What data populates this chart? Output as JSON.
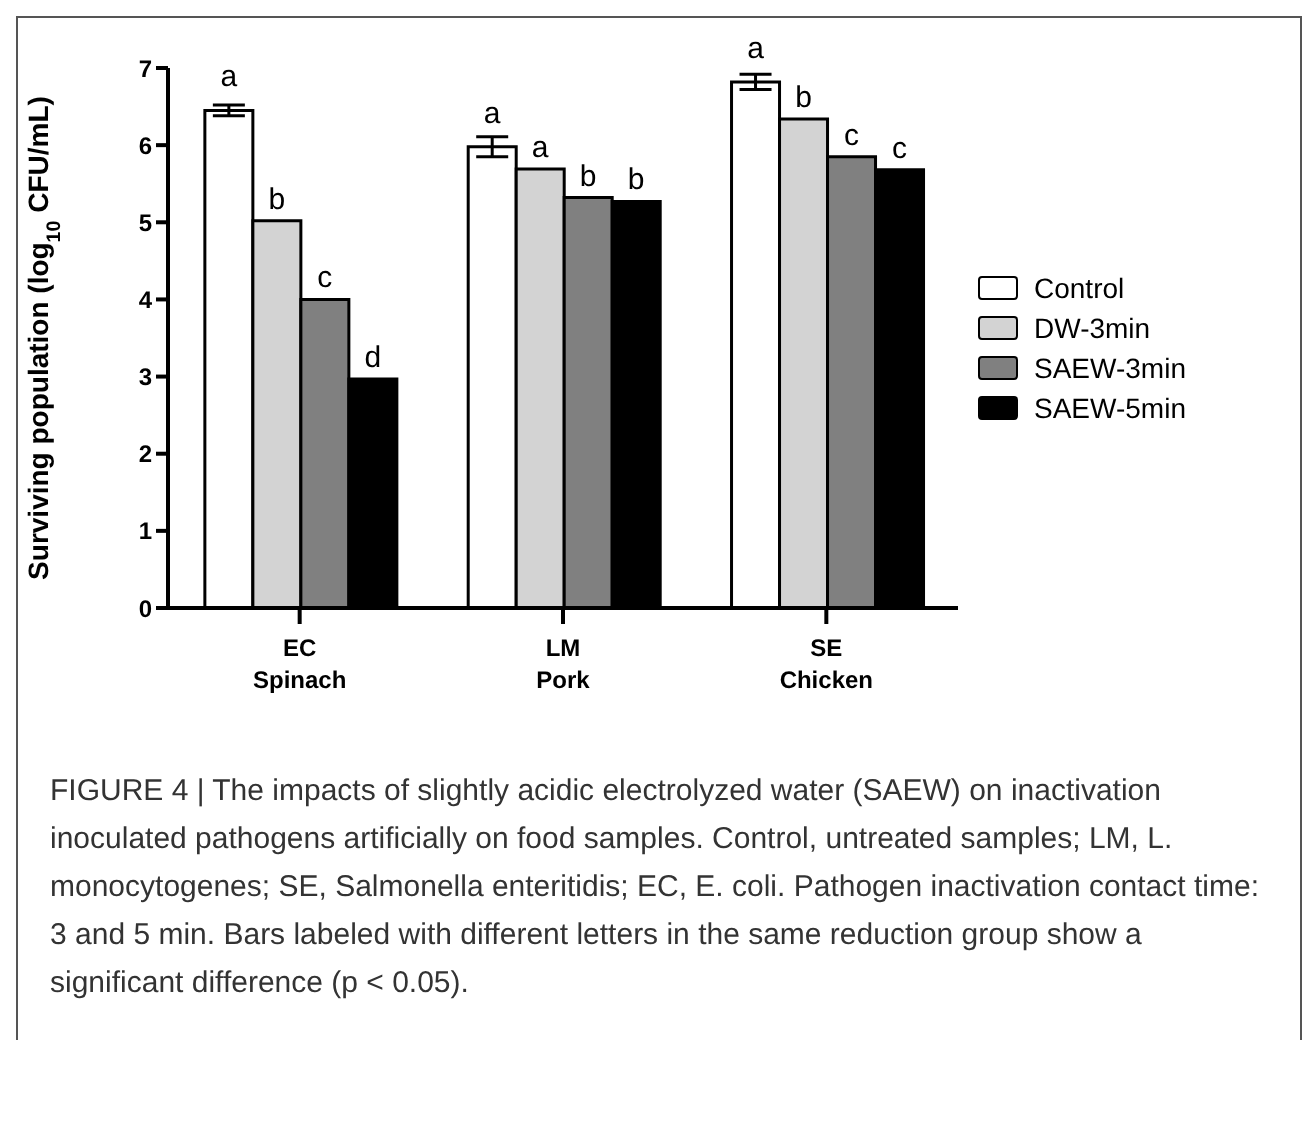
{
  "chart_data": {
    "type": "bar",
    "categories": [
      "EC\nSpinach",
      "LM\nPork",
      "SE\nChicken"
    ],
    "ylabel": "Surviving population (log$_{10}$ CFU/mL)",
    "ylim": [
      0,
      7
    ],
    "yticks": [
      0,
      1,
      2,
      3,
      4,
      5,
      6,
      7
    ],
    "grid": false,
    "legend": "right",
    "series": [
      {
        "name": "Control",
        "color": "#ffffff",
        "values": [
          6.45,
          5.98,
          6.82
        ],
        "errors": [
          0.07,
          0.13,
          0.1
        ],
        "value_labels": [
          "a",
          "a",
          "a"
        ]
      },
      {
        "name": "DW-3min",
        "color": "#d3d3d3",
        "values": [
          5.02,
          5.69,
          6.34
        ],
        "errors": [
          null,
          null,
          null
        ],
        "value_labels": [
          "b",
          "a",
          "b"
        ]
      },
      {
        "name": "SAEW-3min",
        "color": "#808080",
        "values": [
          4.0,
          5.32,
          5.85
        ],
        "errors": [
          null,
          null,
          null
        ],
        "value_labels": [
          "c",
          "b",
          "c"
        ]
      },
      {
        "name": "SAEW-5min",
        "color": "#000000",
        "values": [
          2.97,
          5.27,
          5.68
        ],
        "errors": [
          null,
          null,
          null
        ],
        "value_labels": [
          "d",
          "b",
          "c"
        ]
      }
    ],
    "annotations": [
      "FIGURE 4 | The impacts of slightly acidic electrolyzed water (SAEW) on inactivation inoculated pathogens artificially on food samples. Control, untreated samples; LM, L. monocytogenes; SE, Salmonella enteritidis; EC, E. coli. Pathogen inactivation contact time: 3 and 5 min. Bars labeled with different letters in the same reduction group show a significant difference (p < 0.05)."
    ]
  }
}
